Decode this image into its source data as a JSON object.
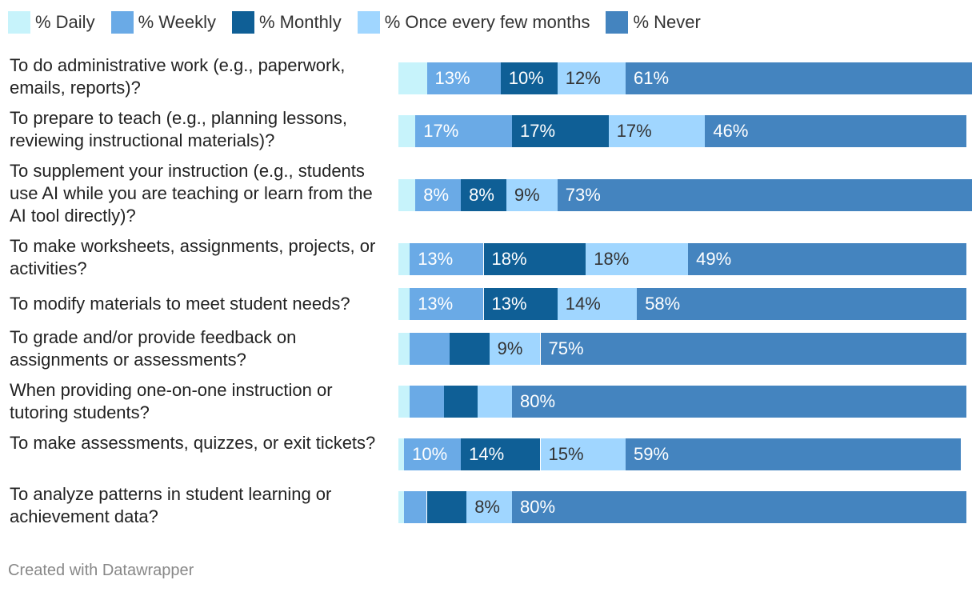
{
  "chart_data": {
    "type": "bar",
    "orientation": "horizontal",
    "stacked": true,
    "categories": [
      "To do administrative work (e.g., paperwork, emails, reports)?",
      "To prepare to teach (e.g., planning lessons, reviewing instructional materials)?",
      "To supplement your instruction (e.g., students use AI while you are teaching or learn from the AI tool directly)?",
      "To make worksheets, assignments, projects, or activities?",
      "To modify materials to meet student needs?",
      "To grade and/or provide feedback on assignments or assessments?",
      "When providing one-on-one instruction or tutoring students?",
      "To make assessments, quizzes, or exit tickets?",
      "To analyze patterns in student learning or achievement data?"
    ],
    "series": [
      {
        "name": "% Daily",
        "color": "#c7f3fb",
        "values": [
          5,
          3,
          3,
          2,
          2,
          2,
          2,
          1,
          1
        ],
        "labels": [
          "",
          "",
          "",
          "",
          "",
          "",
          "",
          "",
          ""
        ]
      },
      {
        "name": "% Weekly",
        "color": "#6aaae6",
        "values": [
          13,
          17,
          8,
          13,
          13,
          7,
          6,
          10,
          4
        ],
        "labels": [
          "13%",
          "17%",
          "8%",
          "13%",
          "13%",
          "",
          "",
          "10%",
          ""
        ]
      },
      {
        "name": "% Monthly",
        "color": "#0f5f96",
        "values": [
          10,
          17,
          8,
          18,
          13,
          7,
          6,
          14,
          7
        ],
        "labels": [
          "10%",
          "17%",
          "8%",
          "18%",
          "13%",
          "",
          "",
          "14%",
          ""
        ]
      },
      {
        "name": "% Once every few months",
        "color": "#a0d6ff",
        "values": [
          12,
          17,
          9,
          18,
          14,
          9,
          6,
          15,
          8
        ],
        "labels": [
          "12%",
          "17%",
          "9%",
          "18%",
          "14%",
          "9%",
          "",
          "15%",
          "8%"
        ]
      },
      {
        "name": "% Never",
        "color": "#4484bf",
        "values": [
          61,
          46,
          73,
          49,
          58,
          75,
          80,
          59,
          80
        ],
        "labels": [
          "61%",
          "46%",
          "73%",
          "49%",
          "58%",
          "75%",
          "80%",
          "59%",
          "80%"
        ]
      }
    ],
    "xlim": [
      0,
      100
    ],
    "legend": "top-left",
    "grid": false
  },
  "footer": "Created with Datawrapper"
}
